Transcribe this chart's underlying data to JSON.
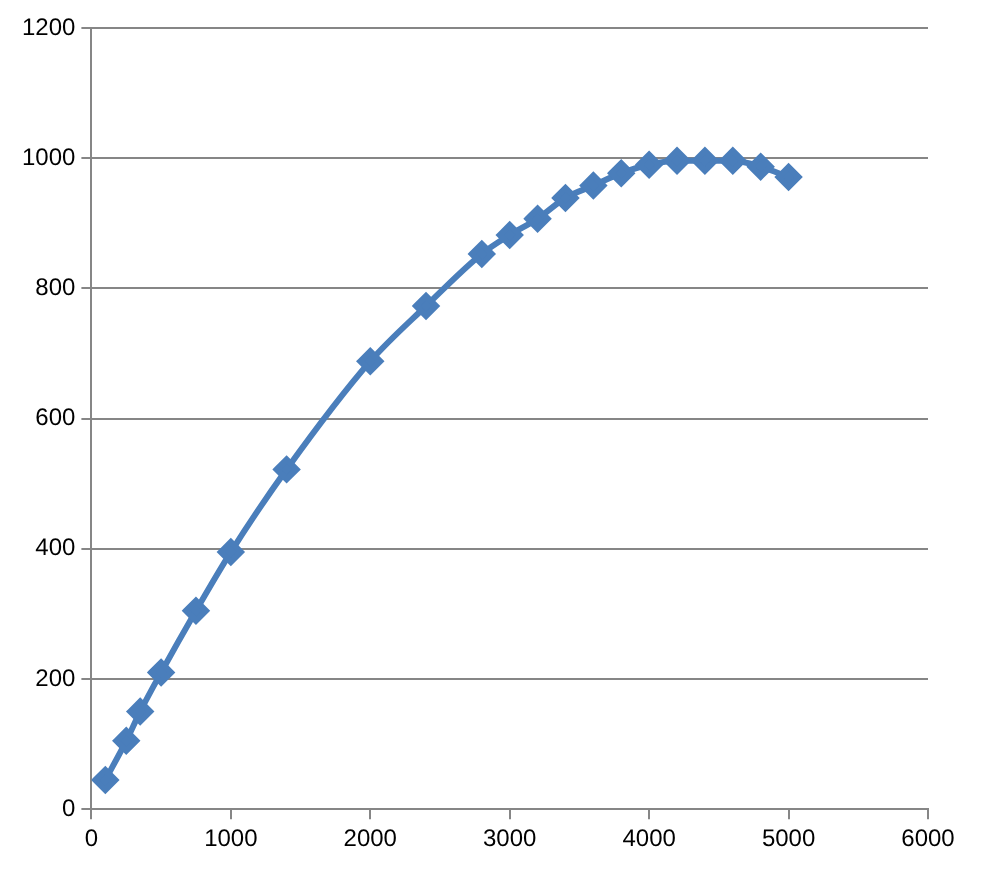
{
  "chart_data": {
    "type": "line",
    "x": [
      100,
      250,
      350,
      500,
      750,
      1000,
      1400,
      2000,
      2400,
      2800,
      3000,
      3200,
      3400,
      3600,
      3800,
      4000,
      4200,
      4400,
      4600,
      4800,
      5000
    ],
    "series": [
      {
        "color": "#4a7ebb",
        "values": [
          45,
          105,
          150,
          210,
          305,
          395,
          522,
          688,
          773,
          853,
          882,
          907,
          939,
          958,
          977,
          990,
          996,
          996,
          996,
          987,
          971
        ]
      }
    ],
    "xlim": [
      0,
      6000
    ],
    "xticks": [
      0,
      1000,
      2000,
      3000,
      4000,
      5000,
      6000
    ],
    "ylim": [
      0,
      1200
    ],
    "yticks": [
      0,
      200,
      400,
      600,
      800,
      1000,
      1200
    ],
    "grid": "y",
    "legend": false,
    "marker": "diamond",
    "line_style": "solid"
  }
}
